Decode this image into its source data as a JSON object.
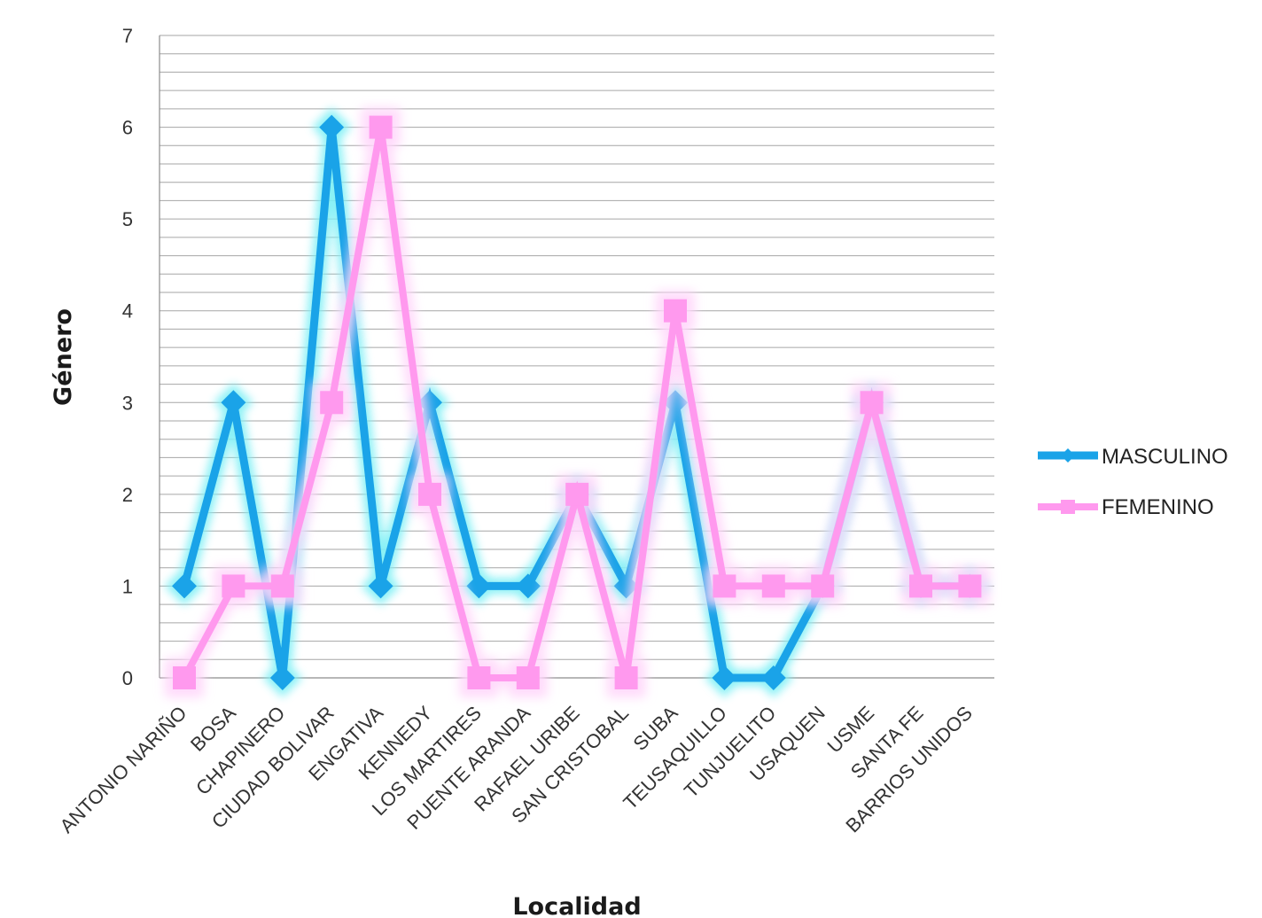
{
  "chart_data": {
    "type": "line",
    "title": "",
    "xlabel": "Localidad",
    "ylabel": "Género",
    "ylim": [
      0,
      7
    ],
    "yticks": [
      0,
      1,
      2,
      3,
      4,
      5,
      6,
      7
    ],
    "minor_grid_step": 0.2,
    "grid": true,
    "legend_position": "right",
    "categories": [
      "ANTONIO NARIÑO",
      "BOSA",
      "CHAPINERO",
      "CIUDAD BOLIVAR",
      "ENGATIVA",
      "KENNEDY",
      "LOS MARTIRES",
      "PUENTE ARANDA",
      "RAFAEL URIBE",
      "SAN CRISTOBAL",
      "SUBA",
      "TEUSAQUILLO",
      "TUNJUELITO",
      "USAQUEN",
      "USME",
      "SANTA FE",
      "BARRIOS UNIDOS"
    ],
    "series": [
      {
        "name": "MASCULINO",
        "color": "#1aa3e8",
        "glow": "#7ff0f5",
        "marker": "diamond",
        "values": [
          1,
          3,
          0,
          6,
          1,
          3,
          1,
          1,
          2,
          1,
          3,
          0,
          0,
          1,
          3,
          1,
          1
        ]
      },
      {
        "name": "FEMENINO",
        "color": "#ff99ee",
        "glow": "#ffd6fa",
        "marker": "square",
        "values": [
          0,
          1,
          1,
          3,
          6,
          2,
          0,
          0,
          2,
          0,
          4,
          1,
          1,
          1,
          3,
          1,
          1
        ]
      }
    ]
  }
}
